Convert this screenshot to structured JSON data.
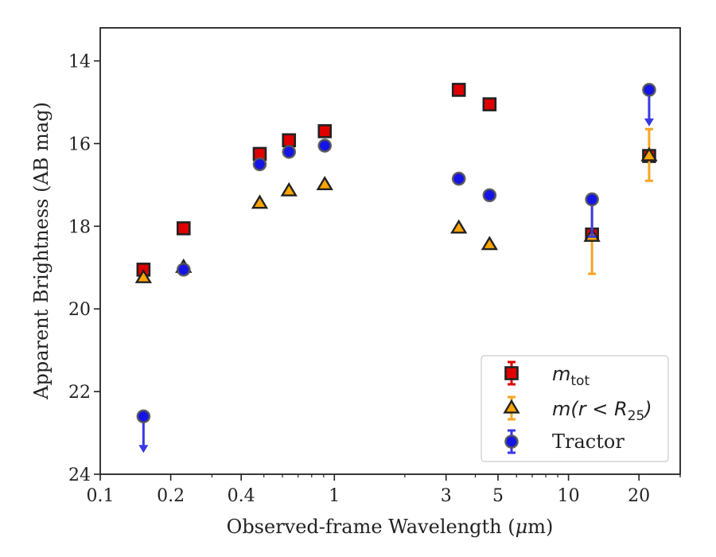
{
  "chart_data": {
    "type": "scatter",
    "xscale": "log",
    "yinverted": true,
    "xlim": [
      0.1,
      30
    ],
    "ylim": [
      24,
      13.2
    ],
    "xlabel_pre": "Observed-frame Wavelength (",
    "xlabel_mu": "μ",
    "xlabel_post": "m)",
    "ylabel": "Apparent Brightness (AB mag)",
    "xticks": [
      {
        "value": 0.1,
        "label": "0.1"
      },
      {
        "value": 0.2,
        "label": "0.2"
      },
      {
        "value": 0.4,
        "label": "0.4"
      },
      {
        "value": 1,
        "label": "1"
      },
      {
        "value": 3,
        "label": "3"
      },
      {
        "value": 5,
        "label": "5"
      },
      {
        "value": 10,
        "label": "10"
      },
      {
        "value": 20,
        "label": "20"
      }
    ],
    "xminor": [
      0.3,
      0.5,
      0.6,
      0.7,
      0.8,
      0.9,
      2,
      4,
      6,
      7,
      8,
      9,
      30
    ],
    "yticks": [
      {
        "value": 14,
        "label": "14"
      },
      {
        "value": 16,
        "label": "16"
      },
      {
        "value": 18,
        "label": "18"
      },
      {
        "value": 20,
        "label": "20"
      },
      {
        "value": 22,
        "label": "22"
      },
      {
        "value": 24,
        "label": "24"
      }
    ],
    "grid": false,
    "legend_position": "bottom-right",
    "legend": {
      "mtot_base": "m",
      "mtot_sub": "tot",
      "mr_pre": "m(r < R",
      "mr_sub": "25",
      "mr_post": ")",
      "tractor": "Tractor"
    },
    "series": [
      {
        "key": "mtot",
        "marker": "square",
        "color": "#e00000",
        "points": [
          {
            "x": 0.153,
            "y": 19.05
          },
          {
            "x": 0.227,
            "y": 18.05
          },
          {
            "x": 0.48,
            "y": 16.25
          },
          {
            "x": 0.64,
            "y": 15.92
          },
          {
            "x": 0.91,
            "y": 15.7
          },
          {
            "x": 3.4,
            "y": 14.7
          },
          {
            "x": 4.6,
            "y": 15.05
          },
          {
            "x": 12.6,
            "y": 18.2
          },
          {
            "x": 22.1,
            "y": 16.3
          }
        ]
      },
      {
        "key": "mr25",
        "marker": "triangle",
        "color": "#ffa500",
        "errcolor": "#f5a623",
        "points": [
          {
            "x": 0.153,
            "y": 19.25
          },
          {
            "x": 0.227,
            "y": 19.0
          },
          {
            "x": 0.48,
            "y": 17.45
          },
          {
            "x": 0.64,
            "y": 17.15
          },
          {
            "x": 0.91,
            "y": 17.0
          },
          {
            "x": 3.4,
            "y": 18.05
          },
          {
            "x": 4.6,
            "y": 18.45
          },
          {
            "x": 12.6,
            "y": 18.25,
            "err": [
              0.9,
              0.9
            ]
          },
          {
            "x": 22.1,
            "y": 16.3,
            "err": [
              0.65,
              0.6
            ]
          }
        ]
      },
      {
        "key": "tractor",
        "marker": "circle",
        "color": "#1414e6",
        "errcolor": "#3838e6",
        "points": [
          {
            "x": 0.153,
            "y": 22.6,
            "upper": true
          },
          {
            "x": 0.227,
            "y": 19.05
          },
          {
            "x": 0.48,
            "y": 16.5
          },
          {
            "x": 0.64,
            "y": 16.2
          },
          {
            "x": 0.91,
            "y": 16.05
          },
          {
            "x": 3.4,
            "y": 16.85
          },
          {
            "x": 4.6,
            "y": 17.25
          },
          {
            "x": 12.6,
            "y": 17.35,
            "err": [
              0,
              0.9
            ]
          },
          {
            "x": 22.1,
            "y": 14.7,
            "upper": true
          }
        ]
      }
    ]
  }
}
